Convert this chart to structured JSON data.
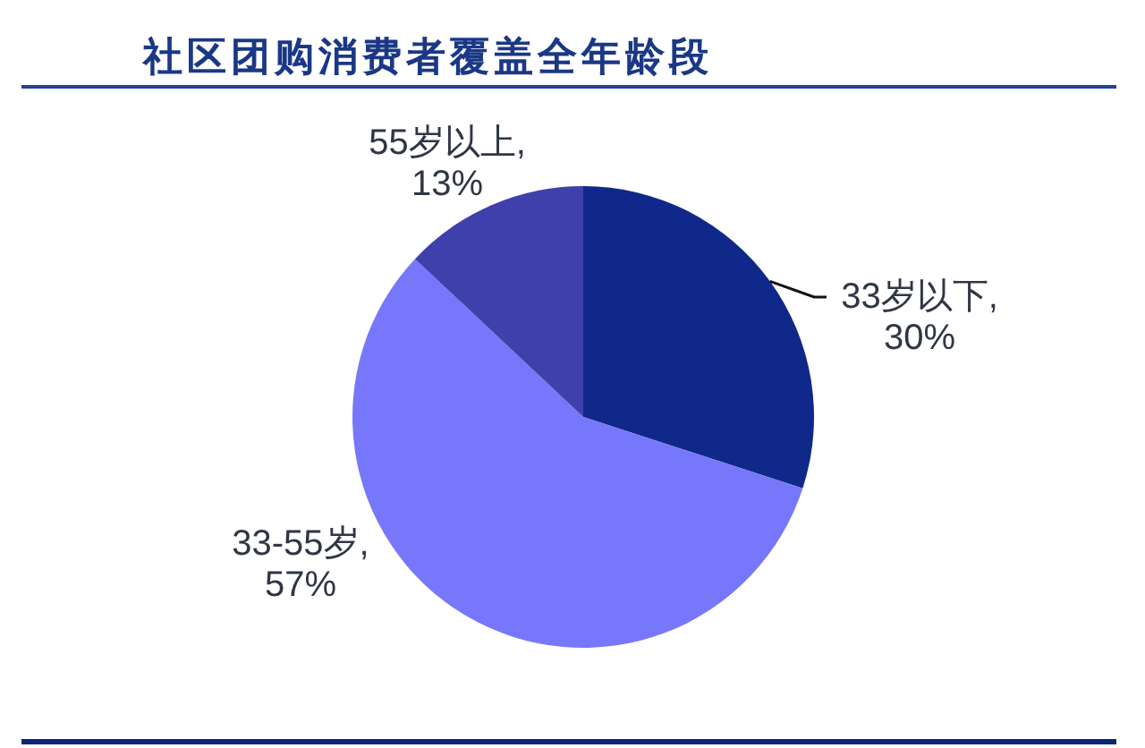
{
  "chart_data": {
    "type": "pie",
    "title": "社区团购消费者覆盖全年龄段",
    "categories": [
      "33岁以下",
      "33-55岁",
      "55岁以上"
    ],
    "values": [
      30,
      57,
      13
    ],
    "value_labels": [
      ",\n30%",
      ",\n57%",
      ",\n13%"
    ],
    "colors": [
      "#10288a",
      "#7777fb",
      "#4040ad"
    ]
  }
}
